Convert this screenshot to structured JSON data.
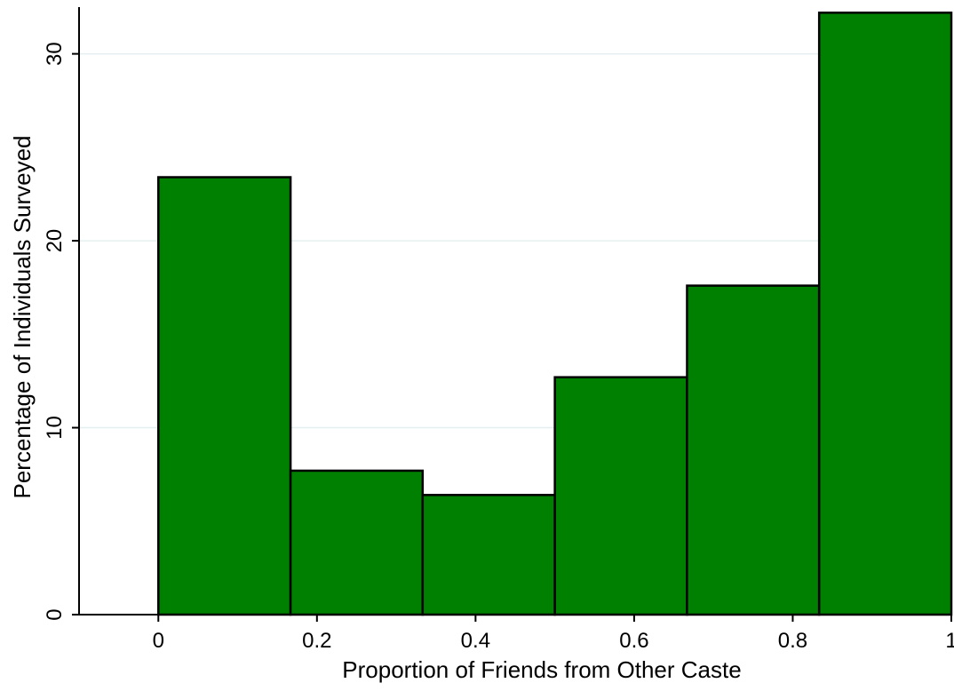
{
  "chart_data": {
    "type": "bar",
    "subtype": "histogram",
    "title": "",
    "xlabel": "Proportion of Friends from Other Caste",
    "ylabel": "Percentage of Individuals Surveyed",
    "xlim": [
      -0.1,
      1.0
    ],
    "ylim": [
      0,
      32.5
    ],
    "xticks": [
      "0",
      "0.2",
      "0.4",
      "0.6",
      "0.8",
      "1"
    ],
    "xtick_values": [
      0,
      0.2,
      0.4,
      0.6,
      0.8,
      1.0
    ],
    "yticks": [
      "0",
      "10",
      "20",
      "30"
    ],
    "ytick_values": [
      0,
      10,
      20,
      30
    ],
    "bins": [
      {
        "x0": 0.0,
        "x1": 0.1667,
        "value": 23.4
      },
      {
        "x0": 0.1667,
        "x1": 0.3333,
        "value": 7.7
      },
      {
        "x0": 0.3333,
        "x1": 0.5,
        "value": 6.4
      },
      {
        "x0": 0.5,
        "x1": 0.6667,
        "value": 12.7
      },
      {
        "x0": 0.6667,
        "x1": 0.8333,
        "value": 17.6
      },
      {
        "x0": 0.8333,
        "x1": 1.0,
        "value": 32.2
      }
    ],
    "grid": true,
    "legend": "none",
    "colors": {
      "bar_fill": "#008000",
      "bar_edge": "#000000",
      "grid": "#e6efef",
      "axis": "#000000"
    }
  }
}
